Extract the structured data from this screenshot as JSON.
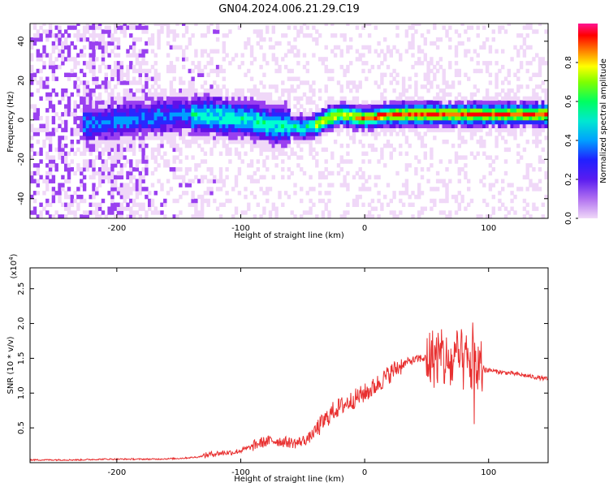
{
  "title": "GN04.2024.006.21.29.C19",
  "chart_data": [
    {
      "type": "heatmap",
      "xlabel": "Height of straight line (km)",
      "ylabel": "Frequency (Hz)",
      "xlim": [
        -270,
        148
      ],
      "ylim": [
        -50,
        49
      ],
      "xticks": [
        -200,
        -100,
        0,
        100
      ],
      "yticks": [
        -40,
        -20,
        0,
        20,
        40
      ],
      "colorbar": {
        "label": "Normalized spectral amplitude",
        "range": [
          0,
          1
        ],
        "ticks": [
          "0.0",
          "0.2",
          "0.4",
          "0.6",
          "0.8"
        ],
        "colormap": [
          "#f0d8f8",
          "#8a2be2",
          "#3232ff",
          "#00c8ff",
          "#00ff80",
          "#30ff00",
          "#c8ff00",
          "#ffff00",
          "#ff8000",
          "#ff0000",
          "#ff1493"
        ]
      },
      "ridge_frequency": {
        "x": [
          -220,
          -180,
          -150,
          -120,
          -100,
          -80,
          -60,
          -50,
          -40,
          -30,
          -20,
          -10,
          0,
          20,
          40,
          60,
          80,
          100,
          120,
          148
        ],
        "y": [
          -3,
          0,
          2,
          1,
          0,
          -3,
          -4,
          -5,
          -3,
          0,
          2,
          1,
          0,
          2,
          2,
          2,
          2,
          2,
          2,
          2
        ]
      }
    },
    {
      "type": "line",
      "xlabel": "Height of straight line (km)",
      "ylabel": "SNR (10 * v/v)",
      "scale_label": "(x10",
      "scale_exp": "4",
      "xlim": [
        -270,
        148
      ],
      "ylim": [
        0,
        2.8
      ],
      "xticks": [
        -200,
        -100,
        0,
        100
      ],
      "yticks": [
        0.5,
        1.0,
        1.5,
        2.0,
        2.5
      ],
      "ytick_labels": [
        "0.5",
        "1.0",
        "1.5",
        "2.0",
        "2.5"
      ],
      "line_color": "#e83030",
      "series": [
        {
          "x": [
            -270,
            -250,
            -230,
            -210,
            -190,
            -170,
            -150,
            -135,
            -125,
            -115,
            -105,
            -95,
            -85,
            -75,
            -65,
            -55,
            -45,
            -35,
            -25,
            -15,
            -5,
            5,
            15,
            25,
            35,
            45,
            55,
            60,
            65,
            70,
            75,
            80,
            85,
            90,
            95,
            100,
            110,
            120,
            130,
            148
          ],
          "y": [
            0.04,
            0.04,
            0.04,
            0.05,
            0.05,
            0.05,
            0.06,
            0.08,
            0.12,
            0.14,
            0.15,
            0.2,
            0.28,
            0.32,
            0.3,
            0.28,
            0.35,
            0.55,
            0.75,
            0.85,
            0.95,
            1.05,
            1.2,
            1.35,
            1.45,
            1.5,
            1.5,
            1.55,
            1.45,
            1.4,
            1.5,
            1.45,
            1.4,
            1.38,
            1.35,
            1.33,
            1.3,
            1.28,
            1.25,
            1.2
          ]
        }
      ]
    }
  ]
}
